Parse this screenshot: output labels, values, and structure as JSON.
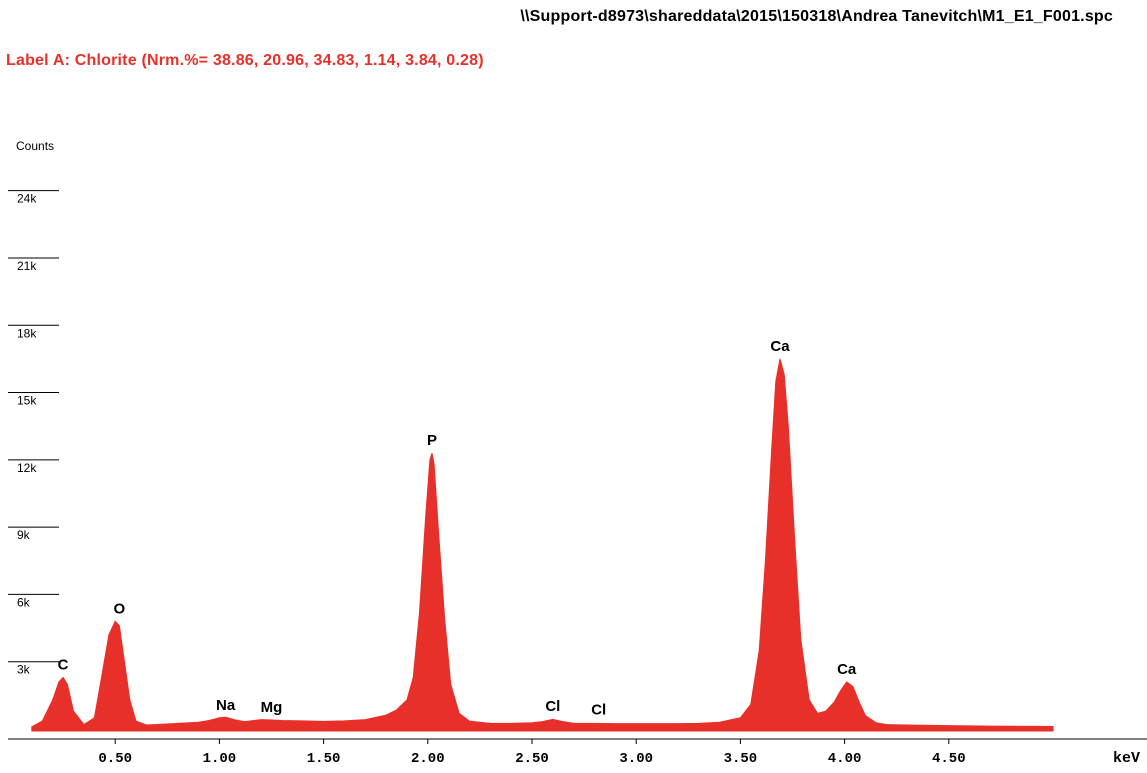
{
  "header": {
    "file_path": "\\\\Support-d8973\\shareddata\\2015\\150318\\Andrea Tanevitch\\M1_E1_F001.spc",
    "label_a": "Label A: Chlorite (Nrm.%= 38.86, 20.96, 34.83, 1.14, 3.84, 0.28)"
  },
  "colors": {
    "spectrum_fill": "#e8302a",
    "label_text": "#e8302a",
    "axis": "#000000"
  },
  "chart_data": {
    "type": "area",
    "title": "",
    "ylabel": "Counts",
    "xlabel": "keV",
    "xlim": [
      0.0,
      5.0
    ],
    "ylim": [
      0,
      26000
    ],
    "grid": false,
    "y_ticks": [
      {
        "value": 3000,
        "label": "3k"
      },
      {
        "value": 6000,
        "label": "6k"
      },
      {
        "value": 9000,
        "label": "9k"
      },
      {
        "value": 12000,
        "label": "12k"
      },
      {
        "value": 15000,
        "label": "15k"
      },
      {
        "value": 18000,
        "label": "18k"
      },
      {
        "value": 21000,
        "label": "21k"
      },
      {
        "value": 24000,
        "label": "24k"
      }
    ],
    "x_ticks": [
      {
        "value": 0.5,
        "label": "0.50"
      },
      {
        "value": 1.0,
        "label": "1.00"
      },
      {
        "value": 1.5,
        "label": "1.50"
      },
      {
        "value": 2.0,
        "label": "2.00"
      },
      {
        "value": 2.5,
        "label": "2.50"
      },
      {
        "value": 3.0,
        "label": "3.00"
      },
      {
        "value": 3.5,
        "label": "3.50"
      },
      {
        "value": 4.0,
        "label": "4.00"
      },
      {
        "value": 4.5,
        "label": "4.50"
      }
    ],
    "peak_labels": [
      {
        "element": "C",
        "x": 0.25,
        "y": 2300
      },
      {
        "element": "O",
        "x": 0.52,
        "y": 4800
      },
      {
        "element": "Na",
        "x": 1.03,
        "y": 500
      },
      {
        "element": "Mg",
        "x": 1.25,
        "y": 400
      },
      {
        "element": "P",
        "x": 2.02,
        "y": 12300
      },
      {
        "element": "Cl",
        "x": 2.6,
        "y": 450
      },
      {
        "element": "Cl",
        "x": 2.82,
        "y": 300
      },
      {
        "element": "Ca",
        "x": 3.69,
        "y": 16500
      },
      {
        "element": "Ca",
        "x": 4.01,
        "y": 2100
      }
    ],
    "series": [
      {
        "x": [
          0.1,
          0.15,
          0.2,
          0.23,
          0.25,
          0.27,
          0.3,
          0.35,
          0.4,
          0.44,
          0.47,
          0.5,
          0.52,
          0.54,
          0.57,
          0.6,
          0.65,
          0.7,
          0.8,
          0.9,
          0.95,
          1.0,
          1.03,
          1.07,
          1.12,
          1.2,
          1.25,
          1.3,
          1.4,
          1.5,
          1.6,
          1.7,
          1.8,
          1.85,
          1.9,
          1.93,
          1.96,
          1.99,
          2.01,
          2.02,
          2.03,
          2.05,
          2.08,
          2.11,
          2.15,
          2.2,
          2.3,
          2.4,
          2.5,
          2.55,
          2.6,
          2.65,
          2.7,
          2.8,
          2.9,
          3.0,
          3.1,
          3.2,
          3.3,
          3.4,
          3.5,
          3.55,
          3.59,
          3.62,
          3.65,
          3.67,
          3.69,
          3.71,
          3.73,
          3.76,
          3.79,
          3.83,
          3.87,
          3.91,
          3.95,
          3.98,
          4.01,
          4.04,
          4.07,
          4.1,
          4.15,
          4.2,
          4.3,
          4.5,
          4.7,
          5.0
        ],
        "y": [
          100,
          350,
          1300,
          2100,
          2300,
          2000,
          800,
          200,
          500,
          2600,
          4200,
          4800,
          4600,
          3300,
          1300,
          350,
          180,
          200,
          250,
          300,
          380,
          500,
          520,
          420,
          330,
          420,
          400,
          380,
          360,
          340,
          360,
          420,
          620,
          850,
          1300,
          2300,
          5200,
          9500,
          12000,
          12300,
          11800,
          9000,
          5000,
          2000,
          700,
          350,
          250,
          250,
          280,
          330,
          430,
          330,
          260,
          250,
          240,
          240,
          240,
          240,
          250,
          300,
          500,
          1100,
          3500,
          7500,
          12500,
          15500,
          16500,
          15800,
          13500,
          8500,
          4000,
          1300,
          700,
          800,
          1200,
          1700,
          2100,
          1900,
          1200,
          600,
          280,
          200,
          180,
          150,
          130,
          110
        ]
      }
    ]
  }
}
